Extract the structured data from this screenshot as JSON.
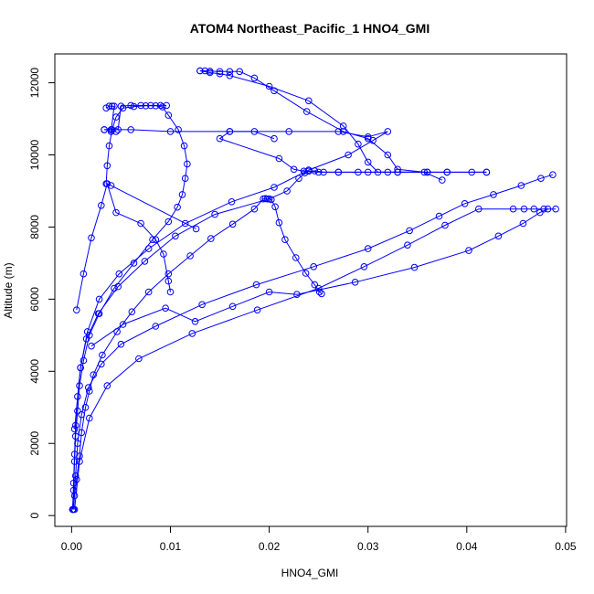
{
  "chart_data": {
    "type": "scatter",
    "title": "ATOM4 Northeast_Pacific_1 HNO4_GMI",
    "xlabel": "HNO4_GMI",
    "ylabel": "Altitude (m)",
    "xlim": [
      -0.0017,
      0.0501
    ],
    "ylim": [
      -300,
      12800
    ],
    "x_ticks": [
      0.0,
      0.01,
      0.02,
      0.03,
      0.04,
      0.05
    ],
    "x_tick_labels": [
      "0.00",
      "0.01",
      "0.02",
      "0.03",
      "0.04",
      "0.05"
    ],
    "y_ticks": [
      0,
      2000,
      4000,
      6000,
      8000,
      10000,
      12000
    ],
    "y_tick_labels": [
      "0",
      "2000",
      "4000",
      "6000",
      "8000",
      "10000",
      "12000"
    ],
    "grid": false,
    "style": {
      "marker": "open-circle",
      "line": true
    },
    "colors": {
      "series": "#0000ff",
      "axis": "#000000",
      "background": "#ffffff"
    },
    "series": [
      {
        "points": [
          [
            0.0002,
            170
          ],
          [
            0.0003,
            550
          ],
          [
            0.0005,
            1000
          ],
          [
            0.0008,
            1650
          ],
          [
            0.001,
            2300
          ],
          [
            0.0014,
            3000
          ],
          [
            0.0018,
            3450
          ],
          [
            0.0022,
            3900
          ],
          [
            0.0031,
            4450
          ],
          [
            0.0046,
            5100
          ],
          [
            0.0061,
            5650
          ],
          [
            0.0078,
            6200
          ],
          [
            0.0098,
            6700
          ],
          [
            0.012,
            7200
          ],
          [
            0.0141,
            7680
          ],
          [
            0.0163,
            8080
          ],
          [
            0.0185,
            8500
          ],
          [
            0.0194,
            8780
          ],
          [
            0.0196,
            8790
          ],
          [
            0.0198,
            8780
          ],
          [
            0.0202,
            8760
          ],
          [
            0.0206,
            8560
          ],
          [
            0.021,
            8120
          ],
          [
            0.0216,
            7650
          ],
          [
            0.0227,
            7150
          ],
          [
            0.0237,
            6720
          ],
          [
            0.0246,
            6400
          ],
          [
            0.0251,
            6200
          ],
          [
            0.0253,
            6150
          ]
        ]
      },
      {
        "points": [
          [
            0.0001,
            170
          ],
          [
            0.0002,
            700
          ],
          [
            0.0003,
            1500
          ],
          [
            0.0004,
            2200
          ],
          [
            0.0006,
            2900
          ],
          [
            0.0008,
            3600
          ],
          [
            0.0012,
            4300
          ],
          [
            0.0018,
            5000
          ],
          [
            0.0028,
            5600
          ],
          [
            0.0043,
            6300
          ],
          [
            0.0063,
            7000
          ],
          [
            0.0082,
            7650
          ],
          [
            0.0098,
            8150
          ],
          [
            0.0107,
            8550
          ],
          [
            0.0112,
            8900
          ],
          [
            0.0115,
            9350
          ],
          [
            0.0117,
            9750
          ],
          [
            0.0114,
            10250
          ],
          [
            0.0108,
            10700
          ],
          [
            0.0098,
            11100
          ],
          [
            0.0092,
            11330
          ],
          [
            0.0085,
            11360
          ],
          [
            0.0075,
            11360
          ],
          [
            0.0063,
            11340
          ],
          [
            0.0052,
            11300
          ],
          [
            0.0045,
            11050
          ],
          [
            0.0041,
            10700
          ],
          [
            0.0038,
            10250
          ],
          [
            0.0036,
            9700
          ],
          [
            0.0035,
            9200
          ],
          [
            0.004,
            9150
          ],
          [
            0.0126,
            7950
          ]
        ]
      },
      {
        "points": [
          [
            0.0001,
            170
          ],
          [
            0.0002,
            900
          ],
          [
            0.0003,
            1700
          ],
          [
            0.0004,
            2500
          ],
          [
            0.0006,
            3300
          ],
          [
            0.0009,
            4100
          ],
          [
            0.0015,
            4900
          ],
          [
            0.0027,
            5600
          ],
          [
            0.0047,
            6350
          ],
          [
            0.0074,
            7050
          ],
          [
            0.0105,
            7750
          ],
          [
            0.0145,
            8350
          ],
          [
            0.02,
            8780
          ],
          [
            0.0218,
            9000
          ],
          [
            0.023,
            9350
          ],
          [
            0.0236,
            9500
          ],
          [
            0.024,
            9550
          ],
          [
            0.0246,
            9560
          ],
          [
            0.0255,
            9520
          ],
          [
            0.027,
            9520
          ],
          [
            0.029,
            9520
          ],
          [
            0.032,
            9520
          ],
          [
            0.036,
            9520
          ],
          [
            0.038,
            9520
          ],
          [
            0.0405,
            9520
          ],
          [
            0.042,
            9520
          ]
        ]
      },
      {
        "points": [
          [
            0.0001,
            170
          ],
          [
            0.0004,
            1100
          ],
          [
            0.0006,
            2000
          ],
          [
            0.001,
            2800
          ],
          [
            0.0017,
            3550
          ],
          [
            0.003,
            4200
          ],
          [
            0.005,
            4750
          ],
          [
            0.0085,
            5250
          ],
          [
            0.0132,
            5850
          ],
          [
            0.0187,
            6400
          ],
          [
            0.0245,
            6900
          ],
          [
            0.03,
            7400
          ],
          [
            0.0342,
            7900
          ],
          [
            0.0372,
            8300
          ],
          [
            0.0398,
            8650
          ],
          [
            0.0427,
            8900
          ],
          [
            0.0455,
            9150
          ],
          [
            0.0475,
            9350
          ],
          [
            0.0487,
            9450
          ]
        ]
      },
      {
        "points": [
          [
            0.0003,
            170
          ],
          [
            0.0008,
            1500
          ],
          [
            0.0018,
            2700
          ],
          [
            0.0036,
            3600
          ],
          [
            0.0068,
            4350
          ],
          [
            0.0122,
            5050
          ],
          [
            0.0188,
            5700
          ],
          [
            0.025,
            6300
          ],
          [
            0.0296,
            6900
          ],
          [
            0.034,
            7500
          ],
          [
            0.0378,
            8050
          ],
          [
            0.0412,
            8500
          ],
          [
            0.0447,
            8500
          ],
          [
            0.0458,
            8500
          ],
          [
            0.0468,
            8500
          ],
          [
            0.0478,
            8500
          ],
          [
            0.049,
            8500
          ]
        ]
      },
      {
        "points": [
          [
            0.002,
            4700
          ],
          [
            0.0052,
            5300
          ],
          [
            0.0095,
            5750
          ],
          [
            0.0125,
            5380
          ],
          [
            0.0163,
            5800
          ],
          [
            0.02,
            6200
          ],
          [
            0.0228,
            6130
          ],
          [
            0.0287,
            6470
          ],
          [
            0.0347,
            6880
          ],
          [
            0.0402,
            7350
          ],
          [
            0.0432,
            7750
          ],
          [
            0.0457,
            8100
          ],
          [
            0.0474,
            8400
          ],
          [
            0.0482,
            8500
          ]
        ]
      },
      {
        "points": [
          [
            0.0003,
            2400
          ],
          [
            0.0009,
            4100
          ],
          [
            0.0016,
            5100
          ],
          [
            0.0028,
            6000
          ],
          [
            0.0048,
            6700
          ],
          [
            0.0078,
            7400
          ],
          [
            0.0115,
            8100
          ],
          [
            0.0162,
            8700
          ],
          [
            0.0205,
            9100
          ],
          [
            0.024,
            9580
          ],
          [
            0.028,
            10000
          ],
          [
            0.0305,
            10400
          ],
          [
            0.032,
            10650
          ],
          [
            0.03,
            10500
          ],
          [
            0.027,
            10650
          ],
          [
            0.022,
            10650
          ],
          [
            0.016,
            10650
          ],
          [
            0.01,
            10650
          ],
          [
            0.006,
            10700
          ],
          [
            0.004,
            10700
          ],
          [
            0.0033,
            10700
          ]
        ]
      },
      {
        "points": [
          [
            0.0033,
            10700
          ],
          [
            0.004,
            10700
          ],
          [
            0.0047,
            10700
          ],
          [
            0.005,
            11350
          ],
          [
            0.006,
            11370
          ],
          [
            0.007,
            11370
          ],
          [
            0.008,
            11370
          ],
          [
            0.009,
            11370
          ],
          [
            0.0096,
            11370
          ]
        ]
      },
      {
        "points": [
          [
            0.0035,
            11300
          ],
          [
            0.0038,
            11350
          ],
          [
            0.0041,
            11350
          ],
          [
            0.0043,
            11350
          ],
          [
            0.004,
            10650
          ],
          [
            0.0045,
            10650
          ]
        ]
      },
      {
        "points": [
          [
            0.013,
            12330
          ],
          [
            0.0135,
            12330
          ],
          [
            0.014,
            12320
          ],
          [
            0.015,
            12310
          ],
          [
            0.016,
            12310
          ],
          [
            0.017,
            12310
          ],
          [
            0.0185,
            12130
          ],
          [
            0.0205,
            11780
          ],
          [
            0.0238,
            11200
          ],
          [
            0.0275,
            10650
          ],
          [
            0.03,
            10450
          ],
          [
            0.032,
            10000
          ],
          [
            0.033,
            9600
          ],
          [
            0.0357,
            9520
          ],
          [
            0.0375,
            9300
          ]
        ]
      },
      {
        "points": [
          [
            0.013,
            12330
          ],
          [
            0.014,
            12280
          ],
          [
            0.015,
            12250
          ],
          [
            0.016,
            12200
          ],
          [
            0.02,
            11900
          ],
          [
            0.024,
            11500
          ],
          [
            0.0275,
            10800
          ],
          [
            0.029,
            10300
          ],
          [
            0.03,
            9800
          ],
          [
            0.031,
            9520
          ],
          [
            0.033,
            9520
          ],
          [
            0.036,
            9520
          ]
        ]
      },
      {
        "points": [
          [
            0.0205,
            10450
          ],
          [
            0.0185,
            10650
          ],
          [
            0.016,
            10650
          ],
          [
            0.015,
            10450
          ],
          [
            0.021,
            9900
          ],
          [
            0.0225,
            9600
          ],
          [
            0.0235,
            9550
          ],
          [
            0.025,
            9520
          ],
          [
            0.027,
            9520
          ],
          [
            0.03,
            9520
          ],
          [
            0.033,
            9520
          ],
          [
            0.038,
            9520
          ],
          [
            0.042,
            9520
          ]
        ]
      },
      {
        "points": [
          [
            0.0005,
            5700
          ],
          [
            0.0012,
            6700
          ],
          [
            0.002,
            7700
          ],
          [
            0.003,
            8600
          ],
          [
            0.0036,
            9200
          ],
          [
            0.0045,
            8400
          ],
          [
            0.007,
            8100
          ],
          [
            0.0085,
            7650
          ],
          [
            0.0093,
            7250
          ],
          [
            0.0098,
            6500
          ],
          [
            0.01,
            6200
          ]
        ]
      }
    ]
  }
}
